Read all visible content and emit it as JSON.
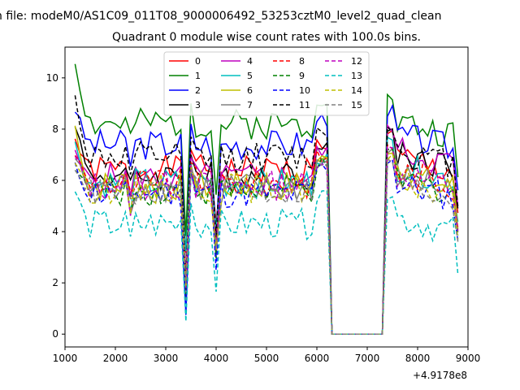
{
  "chart_data": {
    "type": "line",
    "figure_title": "n file: modeM0/AS1C09_011T08_9000006492_53253cztM0_level2_quad_clean",
    "title": "Quadrant 0 module wise count rates with 100.0s bins.",
    "xlabel": "",
    "ylabel": "",
    "x_offset_label": "+4.9178e8",
    "xlim": [
      1000,
      9000
    ],
    "ylim": [
      -0.5,
      11.2
    ],
    "x_ticks": [
      1000,
      2000,
      3000,
      4000,
      5000,
      6000,
      7000,
      8000,
      9000
    ],
    "x_tick_labels": [
      "1000",
      "2000",
      "3000",
      "4000",
      "5000",
      "6000",
      "7000",
      "8000",
      "9000"
    ],
    "y_ticks": [
      0,
      2,
      4,
      6,
      8,
      10
    ],
    "y_tick_labels": [
      "0",
      "2",
      "4",
      "6",
      "8",
      "10"
    ],
    "grid": false,
    "legend_position": "top-center",
    "legend_columns": 4,
    "series": [
      {
        "name": "0",
        "color": "#ff0000",
        "style": "solid",
        "level": 6.4,
        "peak": 7.6,
        "post": 6.9,
        "gap_drop": 1.7,
        "seed": 1
      },
      {
        "name": "1",
        "color": "#008000",
        "style": "solid",
        "level": 8.2,
        "peak": 10.6,
        "post": 8.3,
        "gap_drop": 2.3,
        "seed": 2
      },
      {
        "name": "2",
        "color": "#0000ff",
        "style": "solid",
        "level": 7.4,
        "peak": 8.8,
        "post": 7.8,
        "gap_drop": 2.9,
        "seed": 3
      },
      {
        "name": "3",
        "color": "#000000",
        "style": "solid",
        "level": 6.2,
        "peak": 8.3,
        "post": 7.1,
        "gap_drop": 2.2,
        "seed": 4
      },
      {
        "name": "4",
        "color": "#bf00bf",
        "style": "solid",
        "level": 6.1,
        "peak": 7.0,
        "post": 7.2,
        "gap_drop": 2.0,
        "seed": 5
      },
      {
        "name": "5",
        "color": "#00bfbf",
        "style": "solid",
        "level": 5.9,
        "peak": 7.4,
        "post": 6.6,
        "gap_drop": 1.4,
        "seed": 6
      },
      {
        "name": "6",
        "color": "#bfbf00",
        "style": "solid",
        "level": 5.8,
        "peak": 8.1,
        "post": 6.3,
        "gap_drop": 2.1,
        "seed": 7
      },
      {
        "name": "7",
        "color": "#808080",
        "style": "solid",
        "level": 5.7,
        "peak": 6.9,
        "post": 6.2,
        "gap_drop": 2.3,
        "seed": 8
      },
      {
        "name": "8",
        "color": "#ff0000",
        "style": "dashed",
        "level": 5.9,
        "peak": 7.1,
        "post": 6.4,
        "gap_drop": 2.0,
        "seed": 9
      },
      {
        "name": "9",
        "color": "#008000",
        "style": "dashed",
        "level": 5.6,
        "peak": 6.6,
        "post": 6.1,
        "gap_drop": 2.2,
        "seed": 10
      },
      {
        "name": "10",
        "color": "#0000ff",
        "style": "dashed",
        "level": 5.5,
        "peak": 6.5,
        "post": 5.9,
        "gap_drop": 2.5,
        "seed": 11
      },
      {
        "name": "11",
        "color": "#000000",
        "style": "dashed",
        "level": 6.9,
        "peak": 9.2,
        "post": 7.2,
        "gap_drop": 2.6,
        "seed": 12
      },
      {
        "name": "12",
        "color": "#bf00bf",
        "style": "dashed",
        "level": 5.8,
        "peak": 6.9,
        "post": 6.3,
        "gap_drop": 2.1,
        "seed": 13
      },
      {
        "name": "13",
        "color": "#00bfbf",
        "style": "dashed",
        "level": 4.3,
        "peak": 5.6,
        "post": 4.6,
        "gap_drop": 2.2,
        "seed": 14
      },
      {
        "name": "14",
        "color": "#bfbf00",
        "style": "dashed",
        "level": 5.7,
        "peak": 6.8,
        "post": 6.0,
        "gap_drop": 2.0,
        "seed": 15
      },
      {
        "name": "15",
        "color": "#808080",
        "style": "dashed",
        "level": 5.6,
        "peak": 6.6,
        "post": 5.9,
        "gap_drop": 1.9,
        "seed": 16
      }
    ],
    "x_start": 1200,
    "x_end": 8800,
    "x_step": 100,
    "zero_interval": [
      6300,
      7300
    ],
    "dip_times": [
      3400,
      4000
    ],
    "dip_values": [
      2.2,
      3.6
    ],
    "late_dip_time": 2300
  }
}
